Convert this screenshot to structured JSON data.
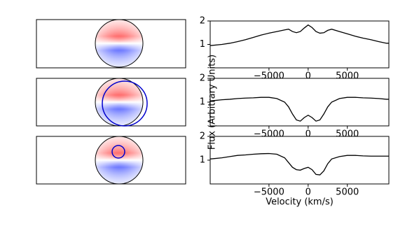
{
  "chart_data": [
    {
      "type": "line",
      "x": [
        -12500,
        -11000,
        -10000,
        -9000,
        -8000,
        -7000,
        -6000,
        -5000,
        -4000,
        -3000,
        -2500,
        -2000,
        -1500,
        -1000,
        -500,
        0,
        500,
        1000,
        1500,
        2000,
        2500,
        3000,
        4000,
        5000,
        6000,
        7000,
        8000,
        9000,
        10000,
        10300
      ],
      "series": [
        {
          "color": "#000000",
          "values": [
            0.95,
            1.0,
            1.05,
            1.12,
            1.2,
            1.3,
            1.4,
            1.48,
            1.55,
            1.62,
            1.65,
            1.55,
            1.5,
            1.55,
            1.7,
            1.83,
            1.72,
            1.55,
            1.48,
            1.5,
            1.6,
            1.65,
            1.55,
            1.45,
            1.35,
            1.27,
            1.2,
            1.12,
            1.05,
            1.05
          ]
        }
      ],
      "xlim": [
        -12500,
        10300
      ],
      "ylim": [
        0,
        2
      ],
      "xticks": [
        {
          "value": -5000,
          "label": "−5000"
        },
        0,
        5000
      ],
      "yticks": [
        1,
        2
      ]
    },
    {
      "type": "line",
      "x": [
        -12500,
        -11000,
        -10000,
        -9000,
        -8000,
        -7000,
        -6000,
        -5000,
        -4000,
        -3000,
        -2500,
        -2000,
        -1500,
        -1000,
        -500,
        0,
        500,
        1000,
        1500,
        2000,
        2500,
        3000,
        4000,
        5000,
        6000,
        7000,
        8000,
        9000,
        10000,
        10300
      ],
      "series": [
        {
          "color": "#000000",
          "values": [
            1.05,
            1.1,
            1.12,
            1.15,
            1.17,
            1.18,
            1.2,
            1.2,
            1.15,
            1.0,
            0.8,
            0.5,
            0.25,
            0.2,
            0.35,
            0.45,
            0.35,
            0.2,
            0.25,
            0.5,
            0.8,
            1.0,
            1.15,
            1.2,
            1.2,
            1.18,
            1.17,
            1.15,
            1.12,
            1.12
          ]
        }
      ],
      "xlim": [
        -12500,
        10300
      ],
      "ylim": [
        0,
        2
      ],
      "xticks": [
        {
          "value": -5000,
          "label": "−5000"
        },
        0,
        5000
      ],
      "yticks": [
        1,
        2
      ],
      "ylabel": "Flux (Arbitrary Units)"
    },
    {
      "type": "line",
      "x": [
        -12500,
        -11000,
        -10000,
        -9000,
        -8000,
        -7000,
        -6000,
        -5000,
        -4000,
        -3000,
        -2500,
        -2000,
        -1500,
        -1000,
        -500,
        0,
        500,
        1000,
        1500,
        2000,
        2500,
        3000,
        4000,
        5000,
        6000,
        7000,
        8000,
        9000,
        10000,
        10300
      ],
      "series": [
        {
          "color": "#000000",
          "values": [
            1.05,
            1.1,
            1.15,
            1.2,
            1.22,
            1.25,
            1.27,
            1.28,
            1.25,
            1.1,
            0.9,
            0.7,
            0.6,
            0.58,
            0.65,
            0.7,
            0.6,
            0.4,
            0.38,
            0.55,
            0.85,
            1.05,
            1.15,
            1.2,
            1.2,
            1.18,
            1.17,
            1.17,
            1.17,
            1.17
          ]
        }
      ],
      "xlim": [
        -12500,
        10300
      ],
      "ylim": [
        0,
        2
      ],
      "xticks": [
        {
          "value": -5000,
          "label": "−5000"
        },
        0,
        5000
      ],
      "yticks": [
        1,
        2
      ],
      "xlabel": "Velocity (km/s)"
    }
  ]
}
